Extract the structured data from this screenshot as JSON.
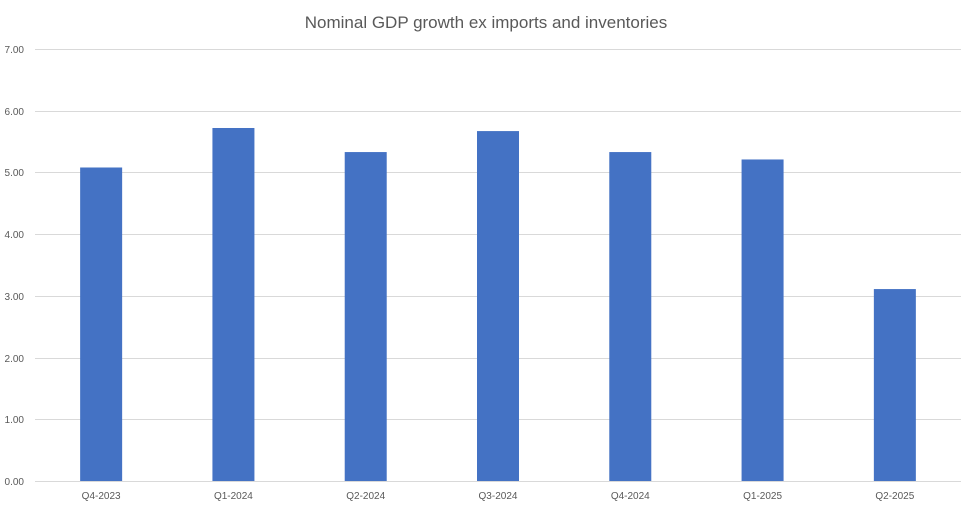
{
  "chart_data": {
    "type": "bar",
    "title": "Nominal GDP growth ex imports and inventories",
    "xlabel": "",
    "ylabel": "",
    "categories": [
      "Q4-2023",
      "Q1-2024",
      "Q2-2024",
      "Q3-2024",
      "Q4-2024",
      "Q1-2025",
      "Q2-2025"
    ],
    "values": [
      5.08,
      5.72,
      5.33,
      5.67,
      5.33,
      5.21,
      3.11
    ],
    "ylim": [
      0,
      7
    ],
    "yticks": [
      "0.00",
      "1.00",
      "2.00",
      "3.00",
      "4.00",
      "5.00",
      "6.00",
      "7.00"
    ],
    "grid": true,
    "legend": "none",
    "bar_color": "#4472c4"
  }
}
